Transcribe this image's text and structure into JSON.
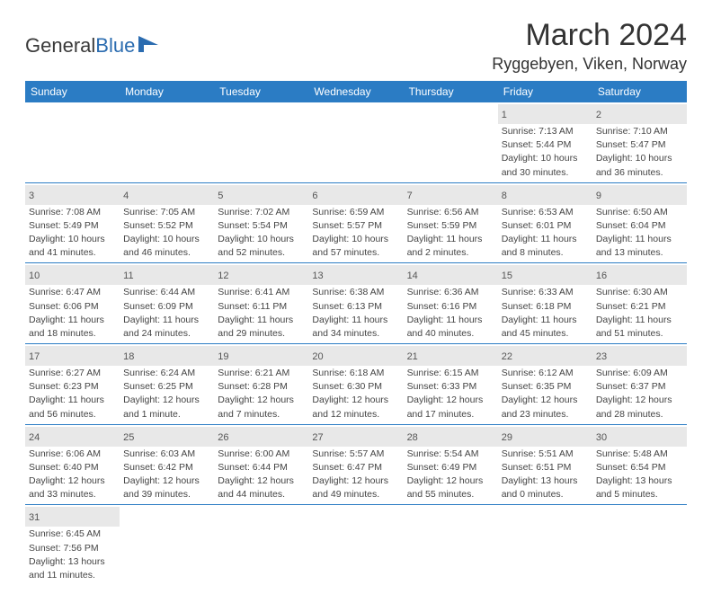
{
  "logo": {
    "text1": "General",
    "text2": "Blue"
  },
  "title": "March 2024",
  "location": "Ryggebyen, Viken, Norway",
  "header_bg": "#2b7cc4",
  "header_fg": "#ffffff",
  "daynum_bg": "#e8e8e8",
  "week_border": "#2b7cc4",
  "day_names": [
    "Sunday",
    "Monday",
    "Tuesday",
    "Wednesday",
    "Thursday",
    "Friday",
    "Saturday"
  ],
  "weeks": [
    {
      "cells": [
        {
          "blank": true
        },
        {
          "blank": true
        },
        {
          "blank": true
        },
        {
          "blank": true
        },
        {
          "blank": true
        },
        {
          "num": "1",
          "sunrise": "Sunrise: 7:13 AM",
          "sunset": "Sunset: 5:44 PM",
          "daylight1": "Daylight: 10 hours",
          "daylight2": "and 30 minutes."
        },
        {
          "num": "2",
          "sunrise": "Sunrise: 7:10 AM",
          "sunset": "Sunset: 5:47 PM",
          "daylight1": "Daylight: 10 hours",
          "daylight2": "and 36 minutes."
        }
      ]
    },
    {
      "cells": [
        {
          "num": "3",
          "sunrise": "Sunrise: 7:08 AM",
          "sunset": "Sunset: 5:49 PM",
          "daylight1": "Daylight: 10 hours",
          "daylight2": "and 41 minutes."
        },
        {
          "num": "4",
          "sunrise": "Sunrise: 7:05 AM",
          "sunset": "Sunset: 5:52 PM",
          "daylight1": "Daylight: 10 hours",
          "daylight2": "and 46 minutes."
        },
        {
          "num": "5",
          "sunrise": "Sunrise: 7:02 AM",
          "sunset": "Sunset: 5:54 PM",
          "daylight1": "Daylight: 10 hours",
          "daylight2": "and 52 minutes."
        },
        {
          "num": "6",
          "sunrise": "Sunrise: 6:59 AM",
          "sunset": "Sunset: 5:57 PM",
          "daylight1": "Daylight: 10 hours",
          "daylight2": "and 57 minutes."
        },
        {
          "num": "7",
          "sunrise": "Sunrise: 6:56 AM",
          "sunset": "Sunset: 5:59 PM",
          "daylight1": "Daylight: 11 hours",
          "daylight2": "and 2 minutes."
        },
        {
          "num": "8",
          "sunrise": "Sunrise: 6:53 AM",
          "sunset": "Sunset: 6:01 PM",
          "daylight1": "Daylight: 11 hours",
          "daylight2": "and 8 minutes."
        },
        {
          "num": "9",
          "sunrise": "Sunrise: 6:50 AM",
          "sunset": "Sunset: 6:04 PM",
          "daylight1": "Daylight: 11 hours",
          "daylight2": "and 13 minutes."
        }
      ]
    },
    {
      "cells": [
        {
          "num": "10",
          "sunrise": "Sunrise: 6:47 AM",
          "sunset": "Sunset: 6:06 PM",
          "daylight1": "Daylight: 11 hours",
          "daylight2": "and 18 minutes."
        },
        {
          "num": "11",
          "sunrise": "Sunrise: 6:44 AM",
          "sunset": "Sunset: 6:09 PM",
          "daylight1": "Daylight: 11 hours",
          "daylight2": "and 24 minutes."
        },
        {
          "num": "12",
          "sunrise": "Sunrise: 6:41 AM",
          "sunset": "Sunset: 6:11 PM",
          "daylight1": "Daylight: 11 hours",
          "daylight2": "and 29 minutes."
        },
        {
          "num": "13",
          "sunrise": "Sunrise: 6:38 AM",
          "sunset": "Sunset: 6:13 PM",
          "daylight1": "Daylight: 11 hours",
          "daylight2": "and 34 minutes."
        },
        {
          "num": "14",
          "sunrise": "Sunrise: 6:36 AM",
          "sunset": "Sunset: 6:16 PM",
          "daylight1": "Daylight: 11 hours",
          "daylight2": "and 40 minutes."
        },
        {
          "num": "15",
          "sunrise": "Sunrise: 6:33 AM",
          "sunset": "Sunset: 6:18 PM",
          "daylight1": "Daylight: 11 hours",
          "daylight2": "and 45 minutes."
        },
        {
          "num": "16",
          "sunrise": "Sunrise: 6:30 AM",
          "sunset": "Sunset: 6:21 PM",
          "daylight1": "Daylight: 11 hours",
          "daylight2": "and 51 minutes."
        }
      ]
    },
    {
      "cells": [
        {
          "num": "17",
          "sunrise": "Sunrise: 6:27 AM",
          "sunset": "Sunset: 6:23 PM",
          "daylight1": "Daylight: 11 hours",
          "daylight2": "and 56 minutes."
        },
        {
          "num": "18",
          "sunrise": "Sunrise: 6:24 AM",
          "sunset": "Sunset: 6:25 PM",
          "daylight1": "Daylight: 12 hours",
          "daylight2": "and 1 minute."
        },
        {
          "num": "19",
          "sunrise": "Sunrise: 6:21 AM",
          "sunset": "Sunset: 6:28 PM",
          "daylight1": "Daylight: 12 hours",
          "daylight2": "and 7 minutes."
        },
        {
          "num": "20",
          "sunrise": "Sunrise: 6:18 AM",
          "sunset": "Sunset: 6:30 PM",
          "daylight1": "Daylight: 12 hours",
          "daylight2": "and 12 minutes."
        },
        {
          "num": "21",
          "sunrise": "Sunrise: 6:15 AM",
          "sunset": "Sunset: 6:33 PM",
          "daylight1": "Daylight: 12 hours",
          "daylight2": "and 17 minutes."
        },
        {
          "num": "22",
          "sunrise": "Sunrise: 6:12 AM",
          "sunset": "Sunset: 6:35 PM",
          "daylight1": "Daylight: 12 hours",
          "daylight2": "and 23 minutes."
        },
        {
          "num": "23",
          "sunrise": "Sunrise: 6:09 AM",
          "sunset": "Sunset: 6:37 PM",
          "daylight1": "Daylight: 12 hours",
          "daylight2": "and 28 minutes."
        }
      ]
    },
    {
      "cells": [
        {
          "num": "24",
          "sunrise": "Sunrise: 6:06 AM",
          "sunset": "Sunset: 6:40 PM",
          "daylight1": "Daylight: 12 hours",
          "daylight2": "and 33 minutes."
        },
        {
          "num": "25",
          "sunrise": "Sunrise: 6:03 AM",
          "sunset": "Sunset: 6:42 PM",
          "daylight1": "Daylight: 12 hours",
          "daylight2": "and 39 minutes."
        },
        {
          "num": "26",
          "sunrise": "Sunrise: 6:00 AM",
          "sunset": "Sunset: 6:44 PM",
          "daylight1": "Daylight: 12 hours",
          "daylight2": "and 44 minutes."
        },
        {
          "num": "27",
          "sunrise": "Sunrise: 5:57 AM",
          "sunset": "Sunset: 6:47 PM",
          "daylight1": "Daylight: 12 hours",
          "daylight2": "and 49 minutes."
        },
        {
          "num": "28",
          "sunrise": "Sunrise: 5:54 AM",
          "sunset": "Sunset: 6:49 PM",
          "daylight1": "Daylight: 12 hours",
          "daylight2": "and 55 minutes."
        },
        {
          "num": "29",
          "sunrise": "Sunrise: 5:51 AM",
          "sunset": "Sunset: 6:51 PM",
          "daylight1": "Daylight: 13 hours",
          "daylight2": "and 0 minutes."
        },
        {
          "num": "30",
          "sunrise": "Sunrise: 5:48 AM",
          "sunset": "Sunset: 6:54 PM",
          "daylight1": "Daylight: 13 hours",
          "daylight2": "and 5 minutes."
        }
      ]
    },
    {
      "last": true,
      "cells": [
        {
          "num": "31",
          "sunrise": "Sunrise: 6:45 AM",
          "sunset": "Sunset: 7:56 PM",
          "daylight1": "Daylight: 13 hours",
          "daylight2": "and 11 minutes."
        },
        {
          "blank": true
        },
        {
          "blank": true
        },
        {
          "blank": true
        },
        {
          "blank": true
        },
        {
          "blank": true
        },
        {
          "blank": true
        }
      ]
    }
  ]
}
